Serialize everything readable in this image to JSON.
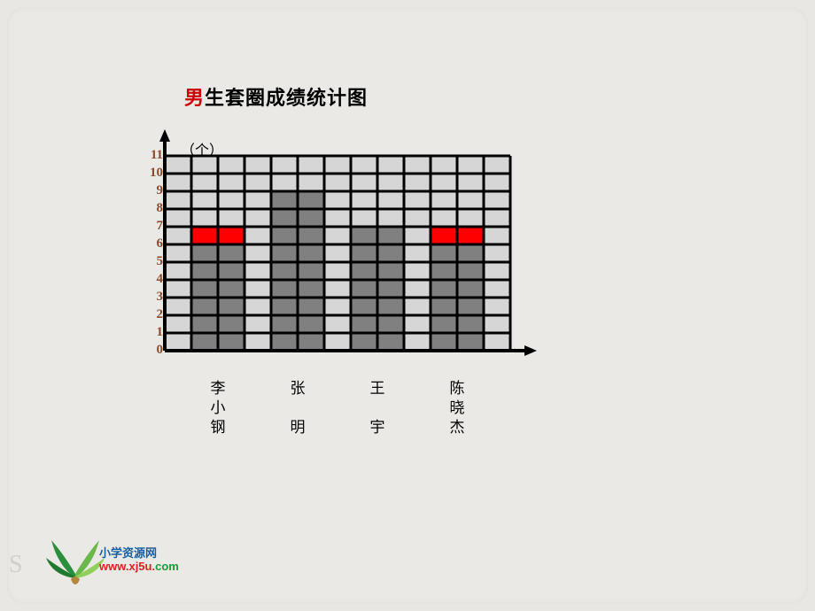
{
  "title": {
    "highlight": "男",
    "rest": "生套圈成绩统计图"
  },
  "unit_label": "（个）",
  "chart": {
    "type": "bar",
    "categories": [
      "李小钢",
      "张明",
      "王宇",
      "陈晓杰"
    ],
    "category_display": [
      [
        "李",
        "小",
        "钢"
      ],
      [
        "张",
        "",
        "明"
      ],
      [
        "王",
        "",
        "宇"
      ],
      [
        "陈",
        "晓",
        "杰"
      ]
    ],
    "values": [
      7,
      9,
      7,
      7
    ],
    "highlight_rows": {
      "0": [
        6,
        7
      ],
      "3": [
        6,
        7
      ]
    },
    "bar_color": "#808080",
    "highlight_color": "#ff0000",
    "grid_color": "#000000",
    "background_color": "#d6d6d6",
    "ylim": [
      0,
      11
    ],
    "ytick_step": 1,
    "y_label_color": "#8b4a2b",
    "grid_cols": 13,
    "grid_cell_w": 30,
    "grid_cell_h": 20,
    "bar_slots": [
      1,
      4,
      7,
      10
    ],
    "bar_width_cells": 2,
    "axis_line_width": 4,
    "grid_line_width": 3
  },
  "logo": {
    "line1": "小学资源网",
    "line2": "www.xj5u.com",
    "com_color": "#1a9c3a"
  },
  "watermark": "S"
}
